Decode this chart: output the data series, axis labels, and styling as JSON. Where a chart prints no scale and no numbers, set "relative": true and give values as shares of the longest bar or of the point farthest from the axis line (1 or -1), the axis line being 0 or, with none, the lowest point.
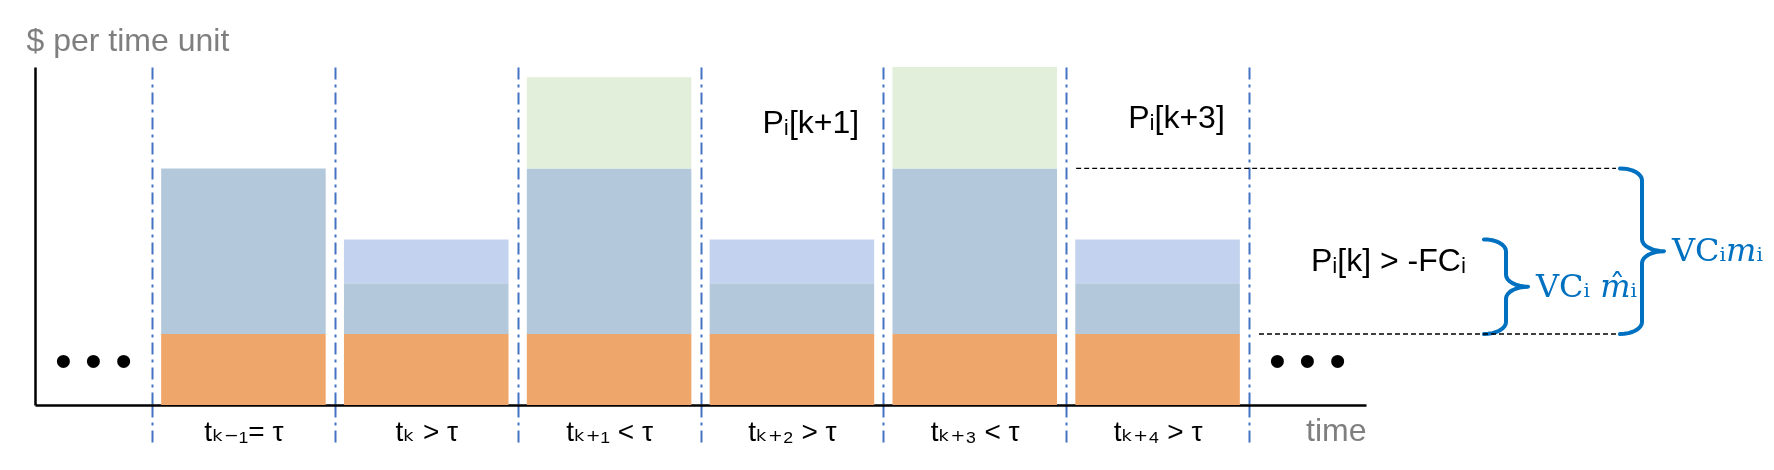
{
  "chart_data": {
    "type": "bar",
    "stacked": true,
    "relative": true,
    "ylabel": "$ per time unit",
    "xlabel": "time",
    "categories": [
      "tₖ₋₁= τ",
      "tₖ > τ",
      "tₖ₊₁ < τ",
      "tₖ₊₂ > τ",
      "tₖ₊₃ < τ",
      "tₖ₊₄ > τ"
    ],
    "series": [
      {
        "color": "#efa66b",
        "values": [
          0.21,
          0.21,
          0.21,
          0.21,
          0.21,
          0.21
        ]
      },
      {
        "color": "#b4c8dc",
        "values": [
          0.49,
          0.15,
          0.49,
          0.15,
          0.49,
          0.15
        ]
      },
      {
        "color": "#c3d2ef",
        "values": [
          null,
          0.13,
          null,
          0.13,
          null,
          0.13
        ]
      },
      {
        "color": "#e2efda",
        "values": [
          null,
          null,
          0.27,
          null,
          0.3,
          null
        ]
      }
    ],
    "grid": "x",
    "ref_lines": [
      {
        "axis": "y",
        "value": 0.7,
        "color": "#000000",
        "line_style": "dashed"
      },
      {
        "axis": "y",
        "value": 0.21,
        "color": "#000000",
        "line_style": "dashed"
      }
    ],
    "annotations": [
      "• • •",
      "Pᵢ[k+1]",
      "Pᵢ[k+3]",
      "Pᵢ[k] > -FCᵢ",
      "VCᵢ 𝑚̂ᵢ",
      "VCᵢ𝑚ᵢ",
      "• • •"
    ]
  }
}
